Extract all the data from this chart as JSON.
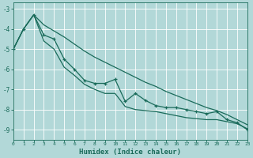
{
  "xlabel": "Humidex (Indice chaleur)",
  "background_color": "#b2d8d8",
  "grid_color": "#c8e8e8",
  "line_color": "#1a6b5a",
  "x_data": [
    0,
    1,
    2,
    3,
    4,
    5,
    6,
    7,
    8,
    9,
    10,
    11,
    12,
    13,
    14,
    15,
    16,
    17,
    18,
    19,
    20,
    21,
    22,
    23
  ],
  "y_main": [
    -5.0,
    -4.0,
    -3.3,
    -4.3,
    -4.5,
    -5.5,
    -6.0,
    -6.55,
    -6.7,
    -6.7,
    -6.5,
    -7.6,
    -7.2,
    -7.55,
    -7.8,
    -7.9,
    -7.9,
    -8.0,
    -8.1,
    -8.2,
    -8.1,
    -8.5,
    -8.65,
    -9.0
  ],
  "y_upper": [
    -5.0,
    -4.0,
    -3.3,
    -3.8,
    -4.1,
    -4.4,
    -4.75,
    -5.1,
    -5.4,
    -5.65,
    -5.9,
    -6.15,
    -6.4,
    -6.65,
    -6.85,
    -7.1,
    -7.3,
    -7.5,
    -7.7,
    -7.9,
    -8.05,
    -8.25,
    -8.5,
    -8.75
  ],
  "y_lower": [
    -5.0,
    -4.0,
    -3.3,
    -4.6,
    -5.0,
    -5.9,
    -6.3,
    -6.75,
    -7.0,
    -7.2,
    -7.2,
    -7.85,
    -8.0,
    -8.05,
    -8.1,
    -8.2,
    -8.3,
    -8.4,
    -8.45,
    -8.5,
    -8.5,
    -8.6,
    -8.7,
    -8.95
  ],
  "xlim": [
    0,
    23
  ],
  "ylim": [
    -9.5,
    -2.7
  ],
  "yticks": [
    -9,
    -8,
    -7,
    -6,
    -5,
    -4,
    -3
  ],
  "xticks": [
    0,
    1,
    2,
    3,
    4,
    5,
    6,
    7,
    8,
    9,
    10,
    11,
    12,
    13,
    14,
    15,
    16,
    17,
    18,
    19,
    20,
    21,
    22,
    23
  ]
}
